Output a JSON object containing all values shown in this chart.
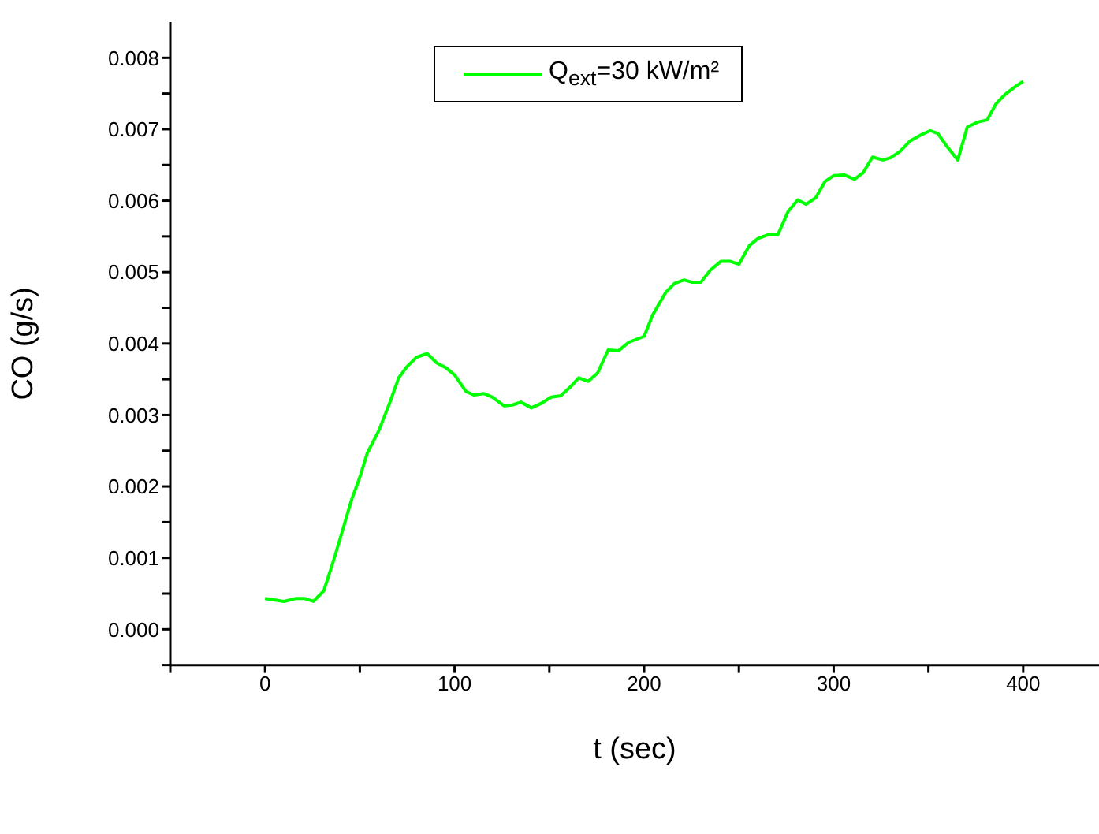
{
  "chart_data": {
    "type": "line",
    "xlabel": "t (sec)",
    "ylabel": "CO (g/s)",
    "x": [
      0,
      10,
      16,
      21,
      25.5,
      31,
      36,
      40.5,
      45.5,
      50,
      54,
      60,
      65.5,
      70.5,
      75,
      80,
      85.5,
      90.5,
      95.5,
      100,
      106,
      110,
      115.5,
      120,
      126,
      130.5,
      135,
      140.5,
      145.5,
      151,
      156,
      161,
      165.5,
      170.5,
      175.5,
      181,
      186.5,
      192,
      200,
      204.5,
      211.5,
      216,
      221,
      225,
      230,
      235,
      240.5,
      245.5,
      250,
      255.5,
      260,
      265,
      270.5,
      276,
      281,
      285.5,
      290.5,
      295.5,
      300,
      305.5,
      311,
      315.5,
      320.5,
      326,
      330,
      335,
      340.5,
      346,
      351,
      355,
      360,
      365.5,
      370.5,
      376,
      381,
      385.5,
      390.5,
      396,
      400
    ],
    "series": [
      {
        "name": "Q$_{ext}$=30 kW/m²",
        "color": "#00ff00",
        "values": [
          0.00043,
          0.00039,
          0.00043,
          0.00043,
          0.00039,
          0.00054,
          0.00095,
          0.00135,
          0.0018,
          0.00213,
          0.00247,
          0.00278,
          0.00315,
          0.00352,
          0.00368,
          0.00381,
          0.00386,
          0.00373,
          0.00366,
          0.00356,
          0.00333,
          0.00328,
          0.0033,
          0.00325,
          0.00313,
          0.00314,
          0.00318,
          0.0031,
          0.00316,
          0.00325,
          0.00327,
          0.00339,
          0.00352,
          0.00347,
          0.00359,
          0.00391,
          0.0039,
          0.00402,
          0.0041,
          0.0044,
          0.00472,
          0.00484,
          0.00489,
          0.00486,
          0.00486,
          0.00503,
          0.00515,
          0.00515,
          0.00511,
          0.00537,
          0.00547,
          0.00552,
          0.00552,
          0.00585,
          0.00601,
          0.00595,
          0.00604,
          0.00627,
          0.00635,
          0.00636,
          0.0063,
          0.00639,
          0.00661,
          0.00657,
          0.0066,
          0.00669,
          0.00684,
          0.00692,
          0.00698,
          0.00694,
          0.00675,
          0.00657,
          0.00703,
          0.0071,
          0.00713,
          0.00735,
          0.00749,
          0.0076,
          0.00767
        ]
      }
    ],
    "xlim": [
      -50,
      440
    ],
    "xticks": [
      {
        "value": -50,
        "label": null
      },
      0,
      {
        "value": 50,
        "label": null
      },
      100,
      {
        "value": 150,
        "label": null
      },
      200,
      {
        "value": 250,
        "label": null
      },
      300,
      {
        "value": 350,
        "label": null
      },
      400
    ],
    "ylim": [
      -0.0005,
      0.0085
    ],
    "yticks": [
      {
        "value": -0.0005,
        "label": null
      },
      {
        "value": 0,
        "label": "0.000"
      },
      {
        "value": 0.0005,
        "label": null
      },
      {
        "value": 0.001,
        "label": "0.001"
      },
      {
        "value": 0.0015,
        "label": null
      },
      {
        "value": 0.002,
        "label": "0.002"
      },
      {
        "value": 0.0025,
        "label": null
      },
      {
        "value": 0.003,
        "label": "0.003"
      },
      {
        "value": 0.0035,
        "label": null
      },
      {
        "value": 0.004,
        "label": "0.004"
      },
      {
        "value": 0.0045,
        "label": null
      },
      {
        "value": 0.005,
        "label": "0.005"
      },
      {
        "value": 0.0055,
        "label": null
      },
      {
        "value": 0.006,
        "label": "0.006"
      },
      {
        "value": 0.0065,
        "label": null
      },
      {
        "value": 0.007,
        "label": "0.007"
      },
      {
        "value": 0.0075,
        "label": null
      },
      {
        "value": 0.008,
        "label": "0.008"
      }
    ],
    "grid": false,
    "legend": "top",
    "marker": "none",
    "line_style": "solid"
  }
}
